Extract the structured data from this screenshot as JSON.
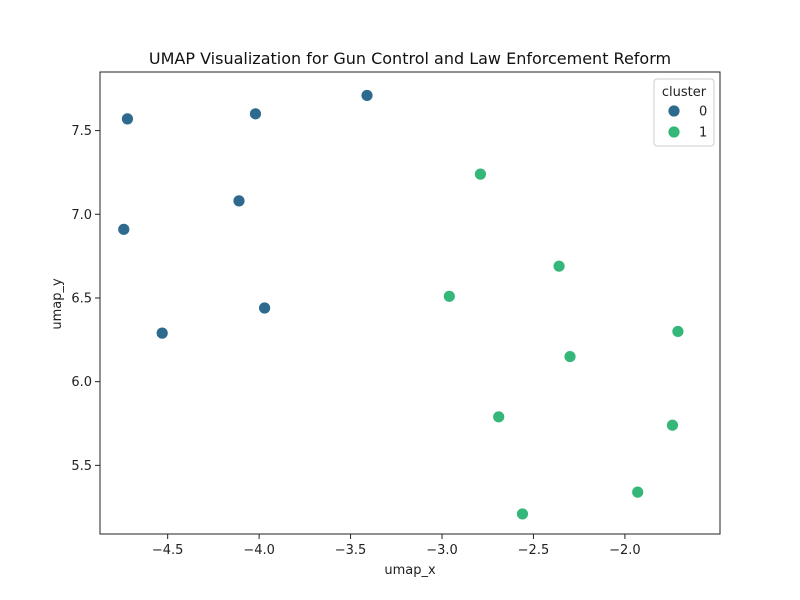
{
  "chart_data": {
    "type": "scatter",
    "title": "UMAP Visualization for Gun Control and Law Enforcement Reform",
    "xlabel": "umap_x",
    "ylabel": "umap_y",
    "xlim": [
      -4.87,
      -1.48
    ],
    "ylim": [
      5.09,
      7.85
    ],
    "xticks": [
      -4.5,
      -4.0,
      -3.5,
      -3.0,
      -2.5,
      -2.0
    ],
    "xtick_labels": [
      "−4.5",
      "−4.0",
      "−3.5",
      "−3.0",
      "−2.5",
      "−2.0"
    ],
    "yticks": [
      5.5,
      6.0,
      6.5,
      7.0,
      7.5
    ],
    "ytick_labels": [
      "5.5",
      "6.0",
      "6.5",
      "7.0",
      "7.5"
    ],
    "grid": false,
    "legend": {
      "title": "cluster",
      "placement": "top-right"
    },
    "series": [
      {
        "name": "0",
        "color": "#2e6a8e",
        "points": [
          {
            "x": -3.41,
            "y": 7.71
          },
          {
            "x": -4.72,
            "y": 7.57
          },
          {
            "x": -4.02,
            "y": 7.6
          },
          {
            "x": -4.11,
            "y": 7.08
          },
          {
            "x": -4.74,
            "y": 6.91
          },
          {
            "x": -3.97,
            "y": 6.44
          },
          {
            "x": -4.53,
            "y": 6.29
          }
        ]
      },
      {
        "name": "1",
        "color": "#35b779",
        "points": [
          {
            "x": -2.79,
            "y": 7.24
          },
          {
            "x": -2.36,
            "y": 6.69
          },
          {
            "x": -2.96,
            "y": 6.51
          },
          {
            "x": -1.71,
            "y": 6.3
          },
          {
            "x": -2.3,
            "y": 6.15
          },
          {
            "x": -2.69,
            "y": 5.79
          },
          {
            "x": -1.74,
            "y": 5.74
          },
          {
            "x": -1.93,
            "y": 5.34
          },
          {
            "x": -2.56,
            "y": 5.21
          }
        ]
      }
    ]
  }
}
